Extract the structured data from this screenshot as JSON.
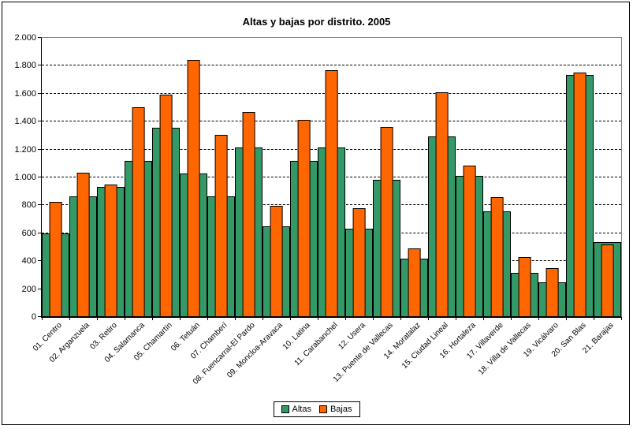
{
  "chart_data": {
    "type": "bar",
    "title": "Altas y bajas por distrito. 2005",
    "categories": [
      "01. Centro",
      "02. Arganzuela",
      "03. Retiro",
      "04. Salamanca",
      "05. Chamartín",
      "06. Tetuán",
      "07. Chamberí",
      "08. Fuencarral-El Pardo",
      "09. Moncloa-Aravaca",
      "10. Latina",
      "11. Carabanchel",
      "12. Usera",
      "13. Puente de Vallecas",
      "14. Moratalaz",
      "15. Ciudad Lineal",
      "16. Hortaleza",
      "17. Villaverde",
      "18. Villa de Vallecas",
      "19. Vicálvaro",
      "20. San Blas",
      "21. Barajas"
    ],
    "series": [
      {
        "name": "Altas",
        "color": "#339966",
        "values": [
          600,
          865,
          930,
          1120,
          1355,
          1030,
          865,
          1215,
          650,
          1120,
          1215,
          635,
          985,
          420,
          1295,
          1010,
          755,
          315,
          250,
          1735,
          535
        ]
      },
      {
        "name": "Bajas",
        "color": "#FF6600",
        "values": [
          825,
          1035,
          950,
          1505,
          1595,
          1840,
          1305,
          1470,
          795,
          1415,
          1770,
          780,
          1360,
          490,
          1610,
          1085,
          860,
          430,
          350,
          1750,
          520
        ]
      }
    ],
    "ylim": [
      0,
      2000
    ],
    "yticks": [
      {
        "value": 0,
        "label": "0"
      },
      {
        "value": 200,
        "label": "200"
      },
      {
        "value": 400,
        "label": "400"
      },
      {
        "value": 600,
        "label": "600"
      },
      {
        "value": 800,
        "label": "800"
      },
      {
        "value": 1000,
        "label": "1.000"
      },
      {
        "value": 1200,
        "label": "1.200"
      },
      {
        "value": 1400,
        "label": "1.400"
      },
      {
        "value": 1600,
        "label": "1.600"
      },
      {
        "value": 1800,
        "label": "1.800"
      },
      {
        "value": 2000,
        "label": "2.000"
      }
    ],
    "grid": "horizontal-dashed",
    "legend_position": "bottom",
    "bar_style": "Bajas bar narrower, drawn in front of full-width Altas bar"
  },
  "colors": {
    "altas": "#339966",
    "bajas": "#FF6600",
    "gridline": "#000000",
    "plot_border": "#808080",
    "axis": "#000000",
    "frame": "#000000",
    "background": "#FFFFFF"
  }
}
